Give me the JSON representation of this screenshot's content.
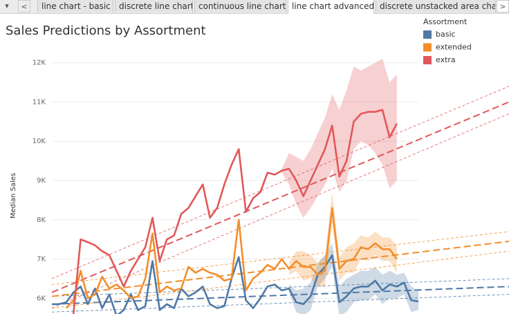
{
  "tabs": [
    "line chart - basic",
    "discrete line chart",
    "continuous line chart",
    "line chart advanced",
    "discrete unstacked area char"
  ],
  "chart_data": {
    "type": "line",
    "title": "Sales Predictions by Assortment",
    "y_label": "Median Sales",
    "legend_title": "Assortment",
    "categories": [
      null,
      null,
      null,
      null,
      null,
      null,
      null,
      null,
      null,
      null,
      null,
      null,
      null,
      null,
      null,
      null,
      null,
      null,
      null,
      null,
      null,
      null,
      null,
      null,
      null,
      null,
      null,
      null,
      null,
      null,
      null,
      null,
      null,
      null,
      null,
      null,
      null,
      null,
      null,
      null,
      null,
      null,
      null,
      null,
      null,
      null,
      null,
      null,
      null,
      null,
      null,
      null
    ],
    "ylim": [
      5600,
      12400
    ],
    "yticks": [
      {
        "value": 6000,
        "label": "6K"
      },
      {
        "value": 7000,
        "label": "7K"
      },
      {
        "value": 8000,
        "label": "8K"
      },
      {
        "value": 9000,
        "label": "9K"
      },
      {
        "value": 10000,
        "label": "10K"
      },
      {
        "value": 11000,
        "label": "11K"
      },
      {
        "value": 12000,
        "label": "12K"
      }
    ],
    "grid": true,
    "legend": "top-right",
    "series": [
      {
        "name": "basic",
        "color": "#4e79a7",
        "values": [
          5850,
          5850,
          5900,
          6150,
          6300,
          5850,
          6250,
          5750,
          6100,
          5550,
          5700,
          6100,
          5700,
          5800,
          6950,
          5700,
          5850,
          5750,
          6250,
          6050,
          6150,
          6300,
          5850,
          5750,
          5800,
          6500,
          7050,
          5950,
          5750,
          6000,
          6300,
          6350,
          6200,
          6250,
          5900,
          5850,
          6050,
          6600,
          6800,
          7100,
          5900,
          6050,
          6250,
          6300,
          6300,
          6450,
          6200,
          6350,
          6300,
          6400,
          5950,
          5920
        ],
        "upper": [
          null,
          null,
          null,
          null,
          null,
          null,
          null,
          null,
          null,
          null,
          null,
          null,
          null,
          null,
          null,
          null,
          null,
          null,
          null,
          null,
          null,
          null,
          null,
          null,
          null,
          null,
          null,
          null,
          null,
          null,
          null,
          null,
          null,
          6350,
          6200,
          6250,
          6400,
          6900,
          7100,
          7400,
          6300,
          6500,
          6600,
          6700,
          6700,
          6800,
          6600,
          6700,
          6600,
          6650,
          6300,
          6200
        ],
        "lower": [
          null,
          null,
          null,
          null,
          null,
          null,
          null,
          null,
          null,
          null,
          null,
          null,
          null,
          null,
          null,
          null,
          null,
          null,
          null,
          null,
          null,
          null,
          null,
          null,
          null,
          null,
          null,
          null,
          null,
          null,
          null,
          null,
          null,
          6150,
          5650,
          5550,
          5700,
          6300,
          6500,
          6800,
          5550,
          5650,
          5900,
          5950,
          5950,
          6100,
          5850,
          6000,
          6000,
          6100,
          5650,
          5700
        ],
        "trend": [
          5850,
          6300
        ],
        "trend_lower": [
          5650,
          6100
        ],
        "trend_upper": [
          6050,
          6500
        ]
      },
      {
        "name": "extended",
        "color": "#f28e2b",
        "values": [
          null,
          null,
          5750,
          5950,
          6700,
          6000,
          6100,
          6550,
          6250,
          6350,
          6200,
          6000,
          6050,
          6500,
          7650,
          6150,
          6300,
          6200,
          6250,
          6800,
          6650,
          6750,
          6650,
          6600,
          6450,
          6500,
          8000,
          6200,
          6500,
          6650,
          6850,
          6750,
          7000,
          6750,
          6950,
          6800,
          6800,
          6600,
          6700,
          8300,
          6750,
          6950,
          7000,
          7300,
          7250,
          7400,
          7250,
          7250,
          7000,
          null,
          null,
          null
        ],
        "upper": [
          null,
          null,
          null,
          null,
          null,
          null,
          null,
          null,
          null,
          null,
          null,
          null,
          null,
          null,
          null,
          null,
          null,
          null,
          null,
          null,
          null,
          null,
          null,
          null,
          null,
          null,
          null,
          null,
          null,
          null,
          null,
          null,
          null,
          6900,
          7200,
          7200,
          7100,
          6900,
          7100,
          8700,
          7050,
          7300,
          7400,
          7600,
          7550,
          7700,
          7550,
          7550,
          7350,
          null,
          null,
          null
        ],
        "lower": [
          null,
          null,
          null,
          null,
          null,
          null,
          null,
          null,
          null,
          null,
          null,
          null,
          null,
          null,
          null,
          null,
          null,
          null,
          null,
          null,
          null,
          null,
          null,
          null,
          null,
          null,
          null,
          null,
          null,
          null,
          null,
          null,
          null,
          6600,
          6700,
          6450,
          6500,
          6300,
          6300,
          7900,
          6450,
          6650,
          6650,
          7000,
          6950,
          7100,
          6950,
          6950,
          6650,
          null,
          null,
          null
        ],
        "trend": [
          6050,
          7450
        ],
        "trend_lower": [
          5750,
          7200
        ],
        "trend_upper": [
          6350,
          7700
        ]
      },
      {
        "name": "extra",
        "color": "#e15759",
        "values": [
          null,
          null,
          null,
          5600,
          7500,
          7430,
          7350,
          7200,
          7100,
          6700,
          6300,
          6700,
          7000,
          7300,
          8050,
          6950,
          7500,
          7600,
          8150,
          8300,
          8600,
          8900,
          8050,
          8300,
          8900,
          9400,
          9800,
          8200,
          8550,
          8700,
          9200,
          9150,
          9250,
          9300,
          9000,
          8600,
          9000,
          9400,
          9800,
          10400,
          9100,
          9500,
          10500,
          10700,
          10750,
          10750,
          10800,
          10100,
          10450,
          null,
          null,
          null
        ],
        "upper": [
          null,
          null,
          null,
          null,
          null,
          null,
          null,
          null,
          null,
          null,
          null,
          null,
          null,
          null,
          null,
          null,
          null,
          null,
          null,
          null,
          null,
          null,
          null,
          null,
          null,
          null,
          null,
          null,
          null,
          null,
          null,
          null,
          9300,
          9700,
          9600,
          9500,
          9800,
          10200,
          10600,
          11200,
          10800,
          11300,
          11900,
          11800,
          11900,
          12000,
          12100,
          11500,
          11700,
          null,
          null,
          null
        ],
        "lower": [
          null,
          null,
          null,
          null,
          null,
          null,
          null,
          null,
          null,
          null,
          null,
          null,
          null,
          null,
          null,
          null,
          null,
          null,
          null,
          null,
          null,
          null,
          null,
          null,
          null,
          null,
          null,
          null,
          null,
          null,
          null,
          null,
          9200,
          8900,
          8400,
          8050,
          8300,
          8600,
          8900,
          9300,
          8700,
          9000,
          9800,
          10000,
          9900,
          9700,
          9400,
          8800,
          9000,
          null,
          null,
          null
        ],
        "trend": [
          6150,
          11000
        ],
        "trend_lower": [
          5750,
          10700
        ],
        "trend_upper": [
          6500,
          11400
        ]
      }
    ]
  }
}
